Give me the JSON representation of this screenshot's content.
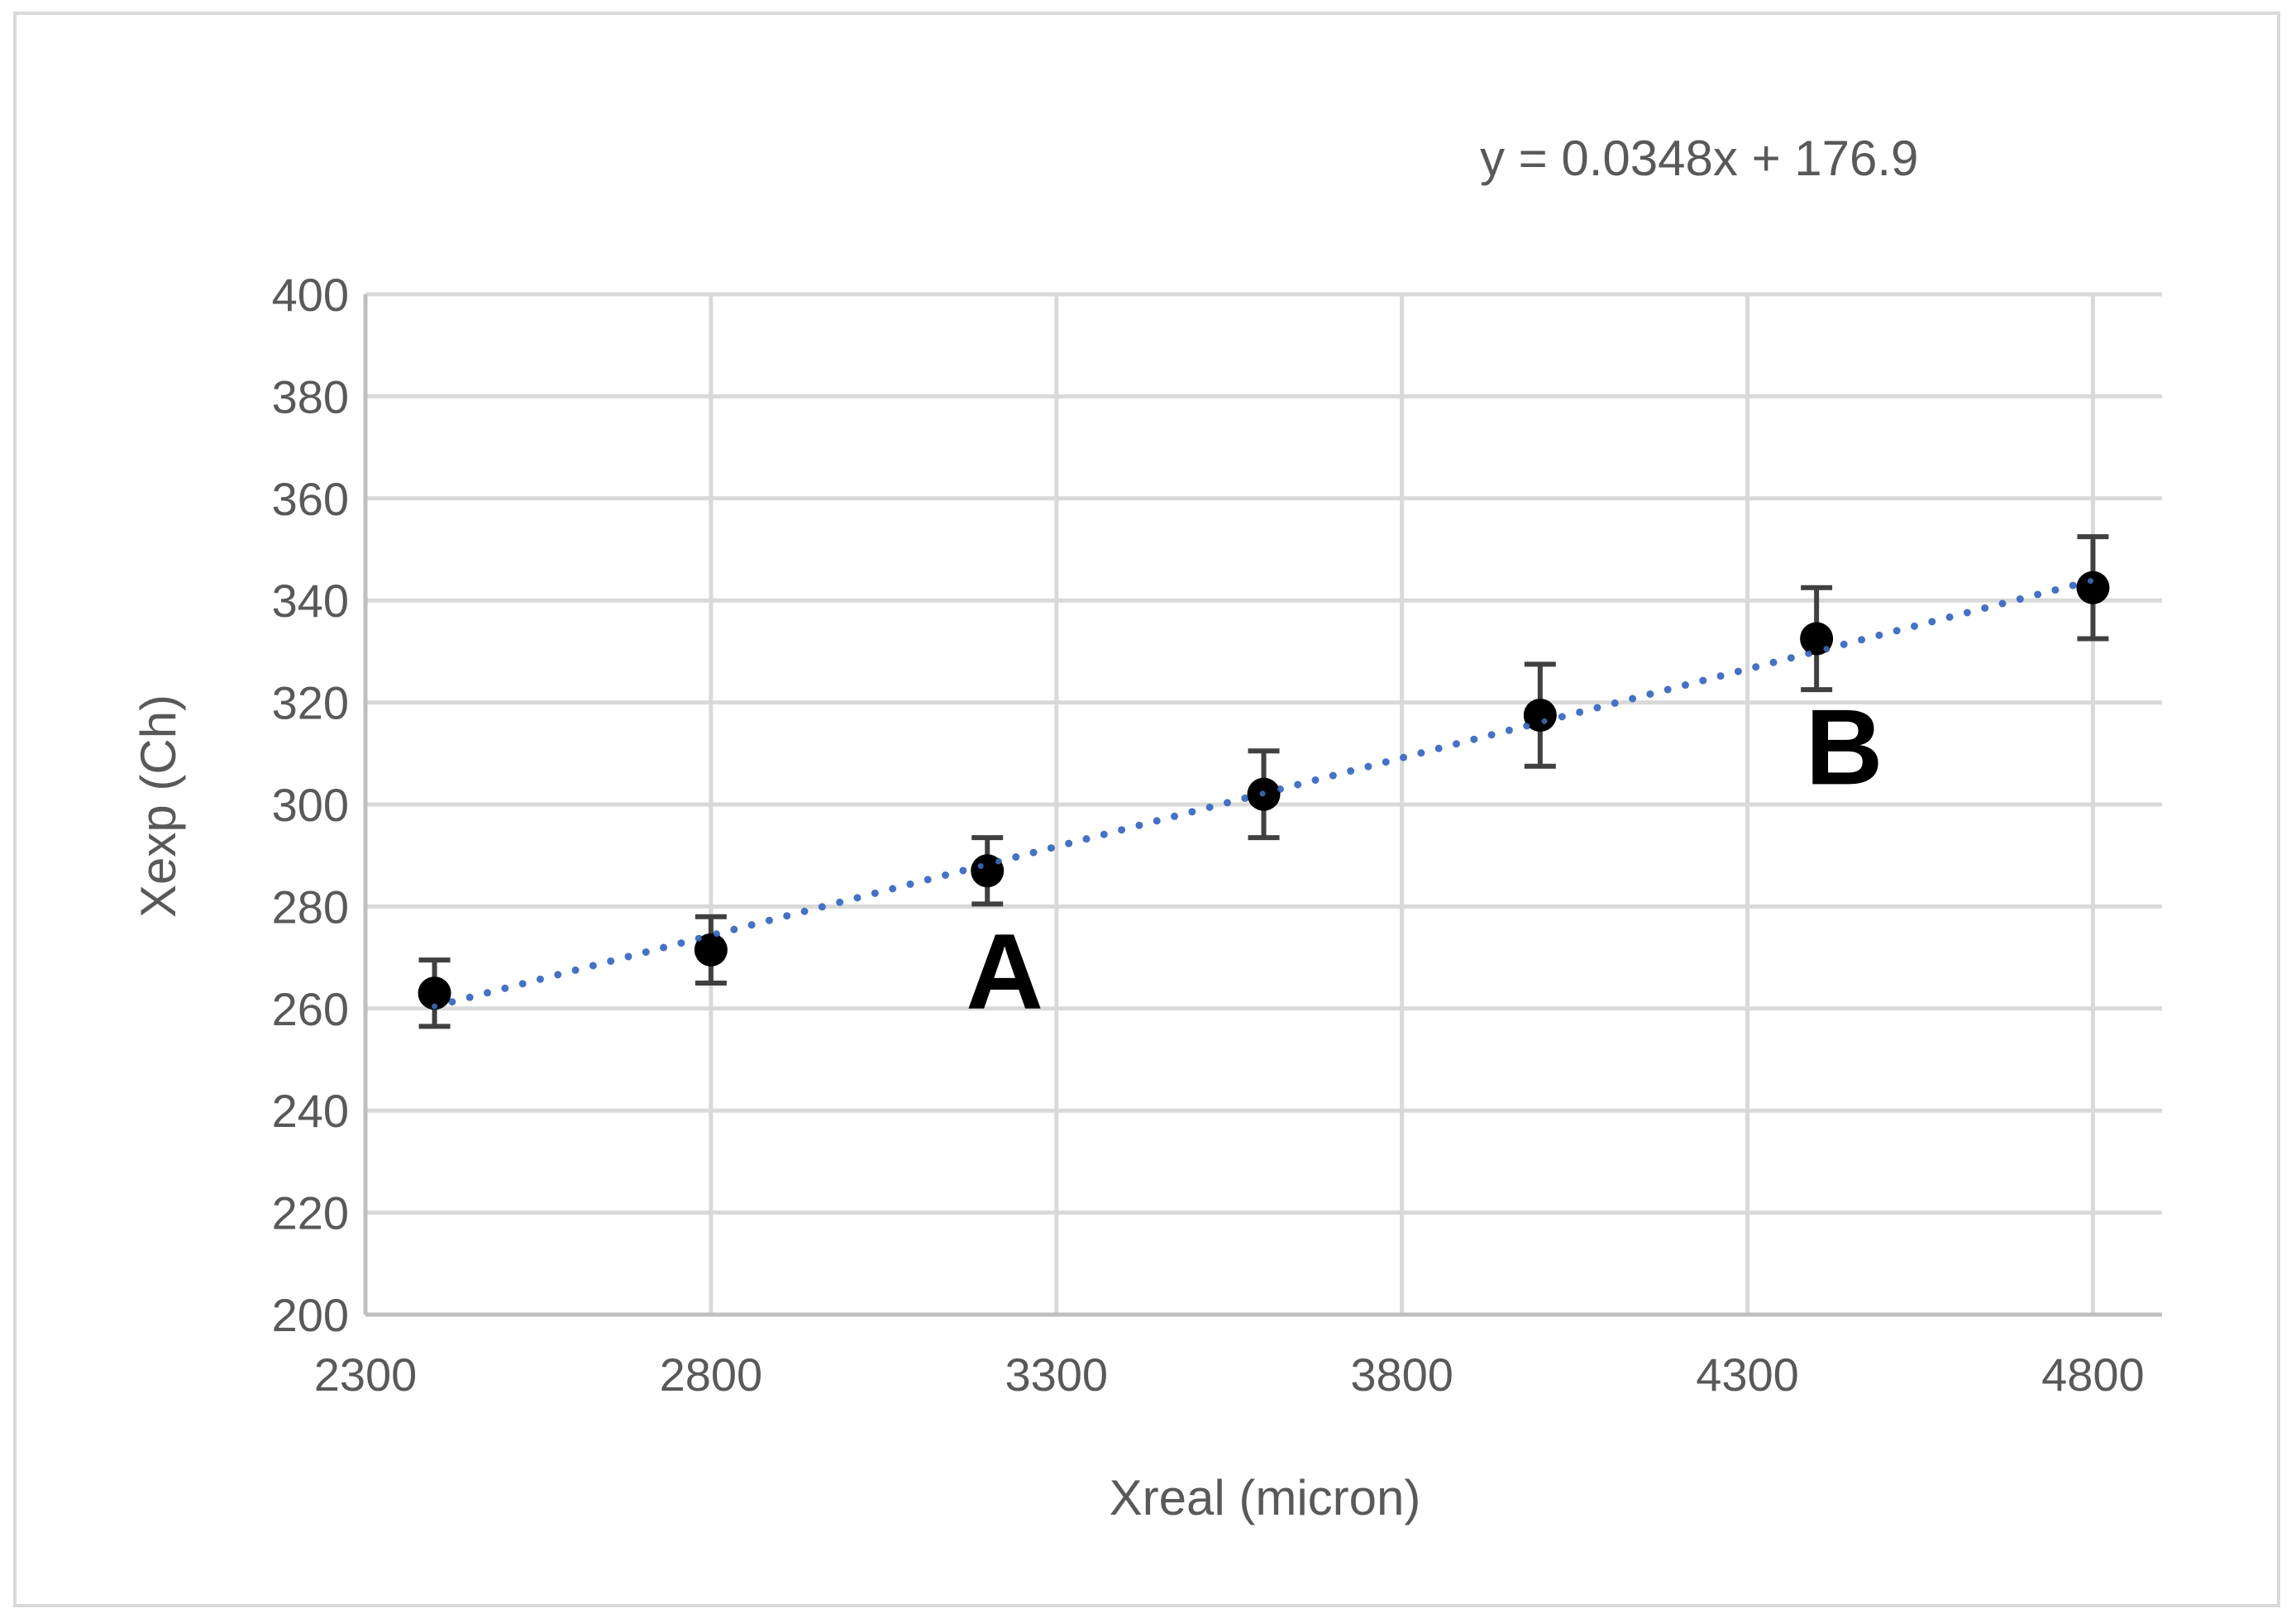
{
  "chart_data": {
    "type": "scatter",
    "xlabel": "Xreal (micron)",
    "ylabel": "Xexp (Ch)",
    "xlim": [
      2300,
      4900
    ],
    "ylim": [
      200,
      400
    ],
    "x_ticks": [
      2300,
      2800,
      3300,
      3800,
      4300,
      4800
    ],
    "y_ticks": [
      200,
      220,
      240,
      260,
      280,
      300,
      320,
      340,
      360,
      380,
      400
    ],
    "grid": true,
    "series": [
      {
        "x": [
          2400,
          2800,
          3200,
          3600,
          4000,
          4400,
          4800
        ],
        "y": [
          263,
          271.5,
          287,
          302,
          317.5,
          332.5,
          342.5
        ],
        "error": [
          6.5,
          6.5,
          6.5,
          8.5,
          10,
          10,
          10
        ],
        "color": "#000000"
      }
    ],
    "trendline": {
      "slope": 0.0348,
      "intercept": 176.9,
      "x_range": [
        2400,
        4800
      ],
      "style": "dotted",
      "color": "#4472c4",
      "equation": "y = 0.0348x + 176.9"
    },
    "annotations": [
      {
        "text": "A",
        "x": 3225,
        "y": 260
      },
      {
        "text": "B",
        "x": 4440,
        "y": 304
      }
    ],
    "colors": {
      "grid": "#d9d9d9",
      "axis": "#bfbfbf",
      "text": "#595959",
      "error_bar": "#404040"
    }
  }
}
